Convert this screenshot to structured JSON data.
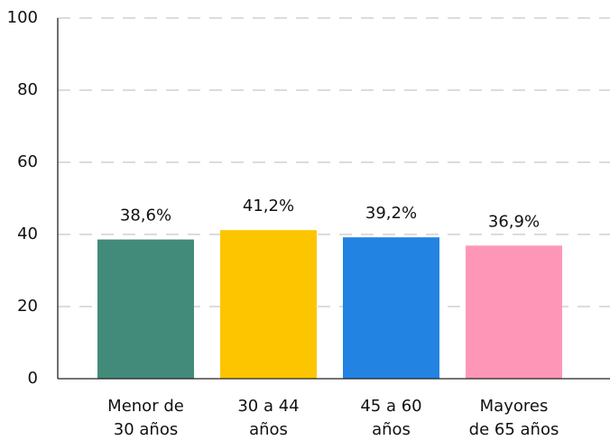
{
  "chart_data": {
    "type": "bar",
    "categories": [
      [
        "Menor de",
        "30 años"
      ],
      [
        "30 a 44",
        "años"
      ],
      [
        "45 a 60",
        "años"
      ],
      [
        "Mayores",
        "de 65 años"
      ]
    ],
    "values": [
      38.6,
      41.2,
      39.2,
      36.9
    ],
    "value_labels": [
      "38,6%",
      "41,2%",
      "39,2%",
      "36,9%"
    ],
    "colors": [
      "#428b7a",
      "#fdc500",
      "#2383e2",
      "#fe97b7"
    ],
    "ylim": [
      0,
      100
    ],
    "yticks": [
      0,
      20,
      40,
      60,
      80,
      100
    ],
    "grid": true
  }
}
